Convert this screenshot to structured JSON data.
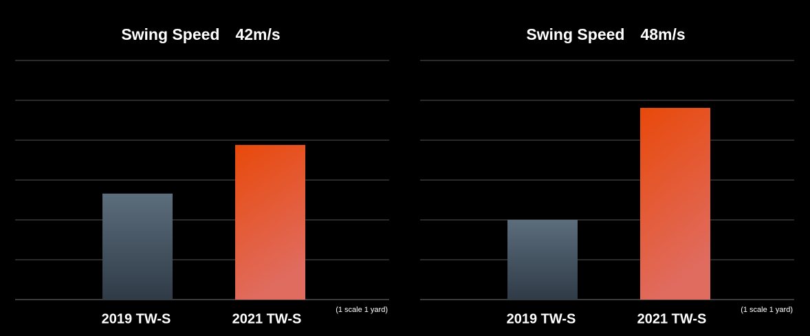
{
  "chart_data": [
    {
      "type": "bar",
      "title": "Swing Speed　42m/s",
      "categories": [
        "2019 TW-S",
        "2021 TW-S"
      ],
      "values": [
        2.66,
        3.88
      ],
      "colors": [
        "#58697a",
        "#e8490e"
      ],
      "ylim": [
        0,
        6
      ],
      "yticks": [
        0,
        1,
        2,
        3,
        4,
        5,
        6
      ],
      "grid": true,
      "annotation": "(1 scale 1 yard)"
    },
    {
      "type": "bar",
      "title": "Swing Speed　48m/s",
      "categories": [
        "2019 TW-S",
        "2021 TW-S"
      ],
      "values": [
        2.0,
        4.81
      ],
      "colors": [
        "#58697a",
        "#e8490e"
      ],
      "ylim": [
        0,
        6
      ],
      "yticks": [
        0,
        1,
        2,
        3,
        4,
        5,
        6
      ],
      "grid": true,
      "annotation": "(1 scale 1 yard)"
    }
  ]
}
